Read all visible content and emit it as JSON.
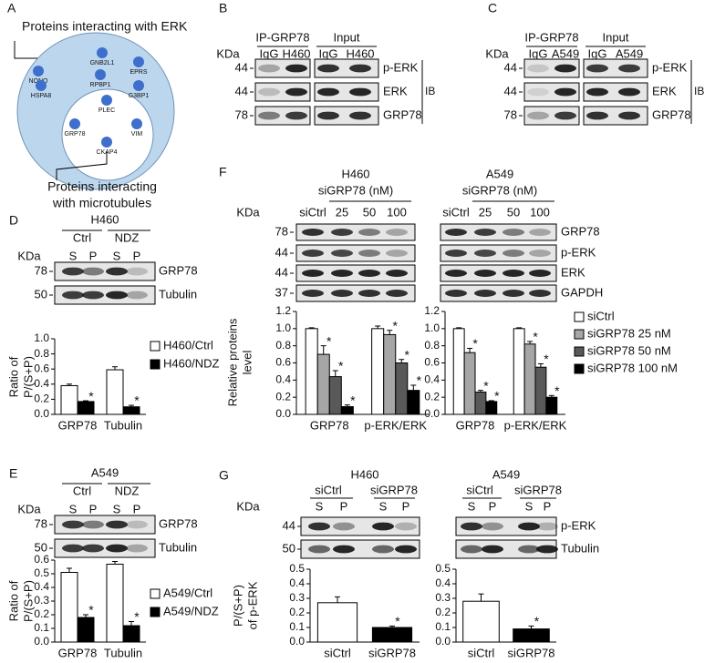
{
  "panel_a": {
    "letter": "A",
    "title": "Proteins interacting with ERK",
    "nodes": [
      "NONO",
      "GNB2L1",
      "EPRS",
      "RPBP1",
      "HSPA8",
      "G3BP1",
      "PLEC",
      "GRP78",
      "VIM",
      "CKAP4"
    ],
    "footer": [
      "Proteins interacting",
      "with microtubules"
    ]
  },
  "panel_b": {
    "letter": "B",
    "groups": [
      "IP-GRP78",
      "Input"
    ],
    "unit": "KDa",
    "lanes": [
      "IgG",
      "H460",
      "IgG",
      "H460"
    ],
    "markers": [
      44,
      44,
      78
    ],
    "proteins": [
      "p-ERK",
      "ERK",
      "GRP78"
    ],
    "method": "IB"
  },
  "panel_c": {
    "letter": "C",
    "groups": [
      "IP-GRP78",
      "Input"
    ],
    "unit": "KDa",
    "lanes": [
      "IgG",
      "A549",
      "IgG",
      "A549"
    ],
    "markers": [
      44,
      44,
      78
    ],
    "proteins": [
      "p-ERK",
      "ERK",
      "GRP78"
    ],
    "method": "IB"
  },
  "panel_d": {
    "letter": "D",
    "cell": "H460",
    "conditions": [
      "Ctrl",
      "NDZ"
    ],
    "unit": "KDa",
    "lanes": [
      "S",
      "P",
      "S",
      "P"
    ],
    "markers": [
      78,
      50
    ],
    "proteins": [
      "GRP78",
      "Tubulin"
    ]
  },
  "panel_e": {
    "letter": "E",
    "cell": "A549",
    "conditions": [
      "Ctrl",
      "NDZ"
    ],
    "unit": "KDa",
    "lanes": [
      "S",
      "P",
      "S",
      "P"
    ],
    "markers": [
      78,
      50
    ],
    "proteins": [
      "GRP78",
      "Tubulin"
    ]
  },
  "panel_f": {
    "letter": "F",
    "unit": "KDa",
    "blots": [
      {
        "cell": "H460",
        "treatment": "siGRP78 (nM)",
        "lanes": [
          "siCtrl",
          25,
          50,
          100
        ]
      },
      {
        "cell": "A549",
        "treatment": "siGRP78 (nM)",
        "lanes": [
          "siCtrl",
          25,
          50,
          100
        ]
      }
    ],
    "markers": [
      78,
      44,
      44,
      37
    ],
    "proteins": [
      "GRP78",
      "p-ERK",
      "ERK",
      "GAPDH"
    ]
  },
  "panel_g": {
    "letter": "G",
    "unit": "KDa",
    "blots": [
      {
        "cell": "H460",
        "conditions": [
          "siCtrl",
          "siGRP78"
        ],
        "lanes": [
          "S",
          "P",
          "S",
          "P"
        ]
      },
      {
        "cell": "A549",
        "conditions": [
          "siCtrl",
          "siGRP78"
        ],
        "lanes": [
          "S",
          "P",
          "S",
          "P"
        ]
      }
    ],
    "markers": [
      44,
      50
    ],
    "proteins": [
      "p-ERK",
      "Tubulin"
    ]
  },
  "chart_data": [
    {
      "type": "bar",
      "y_label": [
        "Ratio of",
        "P/(S+P)"
      ],
      "categories": [
        "GRP78",
        "Tubulin"
      ],
      "series": [
        {
          "name": "H460/Ctrl",
          "color": "#ffffff",
          "values": [
            0.38,
            0.59
          ],
          "errors": [
            0.02,
            0.04
          ]
        },
        {
          "name": "H460/NDZ",
          "color": "#000000",
          "values": [
            0.17,
            0.1
          ],
          "errors": [
            0.01,
            0.02
          ]
        }
      ],
      "ylim": [
        0,
        1.0
      ],
      "yticks": [
        {
          "value": 0,
          "label": "0.0"
        },
        0.2,
        0.4,
        0.6,
        0.8,
        {
          "value": 1,
          "label": "1.0"
        }
      ],
      "annotation": "*",
      "legend": true
    },
    {
      "type": "bar",
      "y_label": [
        "Ratio of",
        "P/(S+P)"
      ],
      "categories": [
        "GRP78",
        "Tubulin"
      ],
      "series": [
        {
          "name": "A549/Ctrl",
          "color": "#ffffff",
          "values": [
            0.51,
            0.57
          ],
          "errors": [
            0.03,
            0.02
          ]
        },
        {
          "name": "A549/NDZ",
          "color": "#000000",
          "values": [
            0.18,
            0.12
          ],
          "errors": [
            0.02,
            0.03
          ]
        }
      ],
      "ylim": [
        0,
        0.6
      ],
      "yticks": [
        {
          "value": 0,
          "label": "0.0"
        },
        0.1,
        0.2,
        0.3,
        0.4,
        0.5,
        0.6
      ],
      "annotation": "*",
      "legend": true
    },
    {
      "type": "bar",
      "y_label": [
        "Relative proteins",
        "level"
      ],
      "categories": [
        "GRP78",
        "p-ERK/ERK"
      ],
      "series": [
        {
          "name": "siCtrl",
          "color": "#ffffff",
          "values": [
            1.0,
            1.0
          ],
          "errors": [
            0.01,
            0.03
          ]
        },
        {
          "name": "siGRP78 25 nM",
          "color": "#a6a6a6",
          "values": [
            0.7,
            0.93
          ],
          "errors": [
            0.1,
            0.05
          ]
        },
        {
          "name": "siGRP78 50 nM",
          "color": "#595959",
          "values": [
            0.44,
            0.6
          ],
          "errors": [
            0.07,
            0.04
          ]
        },
        {
          "name": "siGRP78 100 nM",
          "color": "#000000",
          "values": [
            0.09,
            0.28
          ],
          "errors": [
            0.02,
            0.06
          ]
        }
      ],
      "ylim": [
        0,
        1.2
      ],
      "yticks": [
        {
          "value": 0,
          "label": "0.0"
        },
        0.2,
        0.4,
        0.6,
        0.8,
        {
          "value": 1,
          "label": "1.0"
        },
        1.2
      ],
      "annotation": "*",
      "legend": false
    },
    {
      "type": "bar",
      "y_label": [],
      "categories": [
        "GRP78",
        "p-ERK/ERK"
      ],
      "series": [
        {
          "name": "siCtrl",
          "color": "#ffffff",
          "values": [
            1.0,
            1.0
          ],
          "errors": [
            0.01,
            0.01
          ]
        },
        {
          "name": "siGRP78 25 nM",
          "color": "#a6a6a6",
          "values": [
            0.72,
            0.82
          ],
          "errors": [
            0.05,
            0.03
          ]
        },
        {
          "name": "siGRP78 50 nM",
          "color": "#595959",
          "values": [
            0.26,
            0.55
          ],
          "errors": [
            0.02,
            0.04
          ]
        },
        {
          "name": "siGRP78 100 nM",
          "color": "#000000",
          "values": [
            0.15,
            0.2
          ],
          "errors": [
            0.01,
            0.02
          ]
        }
      ],
      "ylim": [
        0,
        1.2
      ],
      "yticks": [
        {
          "value": 0,
          "label": "0.0"
        },
        0.2,
        0.4,
        0.6,
        0.8,
        {
          "value": 1,
          "label": "1.0"
        },
        1.2
      ],
      "annotation": "*",
      "legend": true
    },
    {
      "type": "bar",
      "y_label": [
        "P/(S+P)",
        "of p-ERK"
      ],
      "categories": [
        "siCtrl",
        "siGRP78"
      ],
      "series": [
        {
          "colors": [
            "#ffffff",
            "#000000"
          ],
          "values": [
            0.27,
            0.1
          ],
          "errors": [
            0.04,
            0.01
          ]
        }
      ],
      "ylim": [
        0,
        0.5
      ],
      "yticks": [
        {
          "value": 0,
          "label": "0.0"
        },
        0.1,
        0.2,
        0.3,
        0.4,
        0.5
      ],
      "annotation": "*",
      "legend": false
    },
    {
      "type": "bar",
      "y_label": [],
      "categories": [
        "siCtrl",
        "siGRP78"
      ],
      "series": [
        {
          "colors": [
            "#ffffff",
            "#000000"
          ],
          "values": [
            0.28,
            0.09
          ],
          "errors": [
            0.05,
            0.02
          ]
        }
      ],
      "ylim": [
        0,
        0.5
      ],
      "yticks": [
        {
          "value": 0,
          "label": "0.0"
        },
        0.1,
        0.2,
        0.3,
        0.4,
        0.5
      ],
      "annotation": "*",
      "legend": false
    }
  ]
}
